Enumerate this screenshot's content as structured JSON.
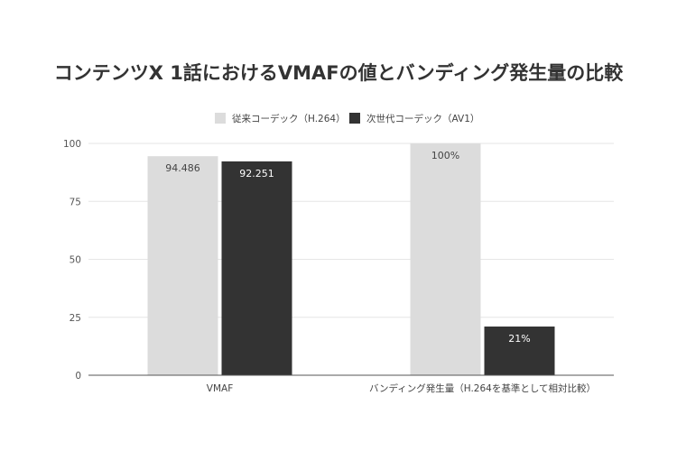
{
  "chart_data": {
    "type": "bar",
    "title": "コンテンツX 1話におけるVMAFの値とバンディング発生量の比較",
    "categories": [
      "VMAF",
      "バンディング発生量（H.264を基準として相対比較）"
    ],
    "series": [
      {
        "name": "従来コーデック（H.264）",
        "values": [
          94.486,
          100
        ],
        "data_labels": [
          "94.486",
          "100%"
        ],
        "color": "#dcdcdc",
        "label_color": "#444444"
      },
      {
        "name": "次世代コーデック（AV1）",
        "values": [
          92.251,
          21
        ],
        "data_labels": [
          "92.251",
          "21%"
        ],
        "color": "#333333",
        "label_color": "#ffffff"
      }
    ],
    "ylim": [
      0,
      100
    ],
    "yticks": [
      "0",
      "25",
      "50",
      "75",
      "100"
    ],
    "ytick_values": [
      0,
      25,
      50,
      75,
      100
    ],
    "grid": true,
    "legend_position": "top-center",
    "gridline_color": "#e6e6e6",
    "axis_color": "#555555"
  }
}
